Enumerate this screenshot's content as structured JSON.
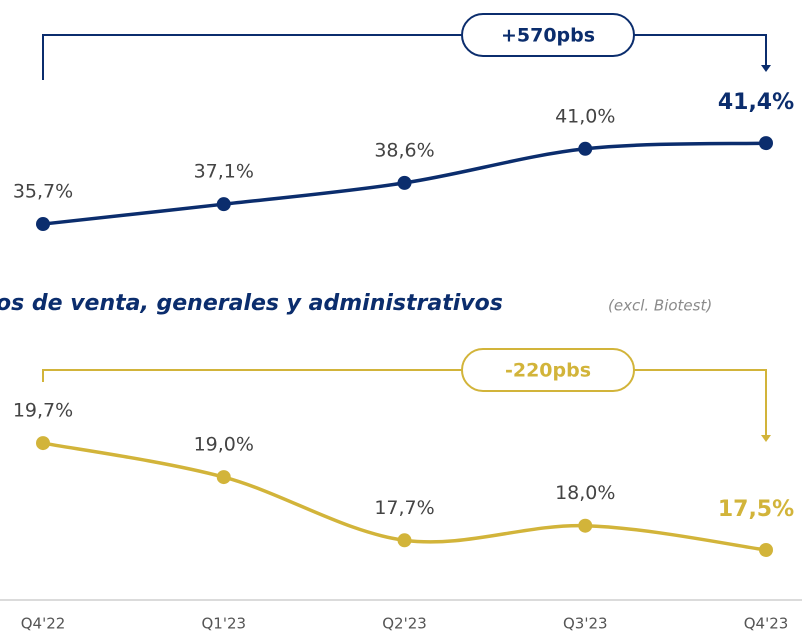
{
  "chart_data": [
    {
      "type": "line",
      "annotation": "+570pbs",
      "series": [
        {
          "name": null,
          "color": "#0b2d6d",
          "values": [
            35.7,
            37.1,
            38.6,
            41.0,
            41.4
          ],
          "value_labels": [
            "35,7%",
            "37,1%",
            "38,6%",
            "41,0%",
            "41,4%"
          ]
        }
      ],
      "ylim": [
        35,
        42
      ]
    },
    {
      "type": "line",
      "title": "os de venta, generales y administrativos",
      "subtitle": "(excl. Biotest)",
      "annotation": "-220pbs",
      "categories": [
        "Q4'22",
        "Q1'23",
        "Q2'23",
        "Q3'23",
        "Q4'23"
      ],
      "series": [
        {
          "name": null,
          "color": "#d2b43a",
          "values": [
            19.7,
            19.0,
            17.7,
            18.0,
            17.5
          ],
          "value_labels": [
            "19,7%",
            "19,0%",
            "17,7%",
            "18,0%",
            "17,5%"
          ]
        }
      ],
      "ylim": [
        17,
        20
      ]
    }
  ]
}
